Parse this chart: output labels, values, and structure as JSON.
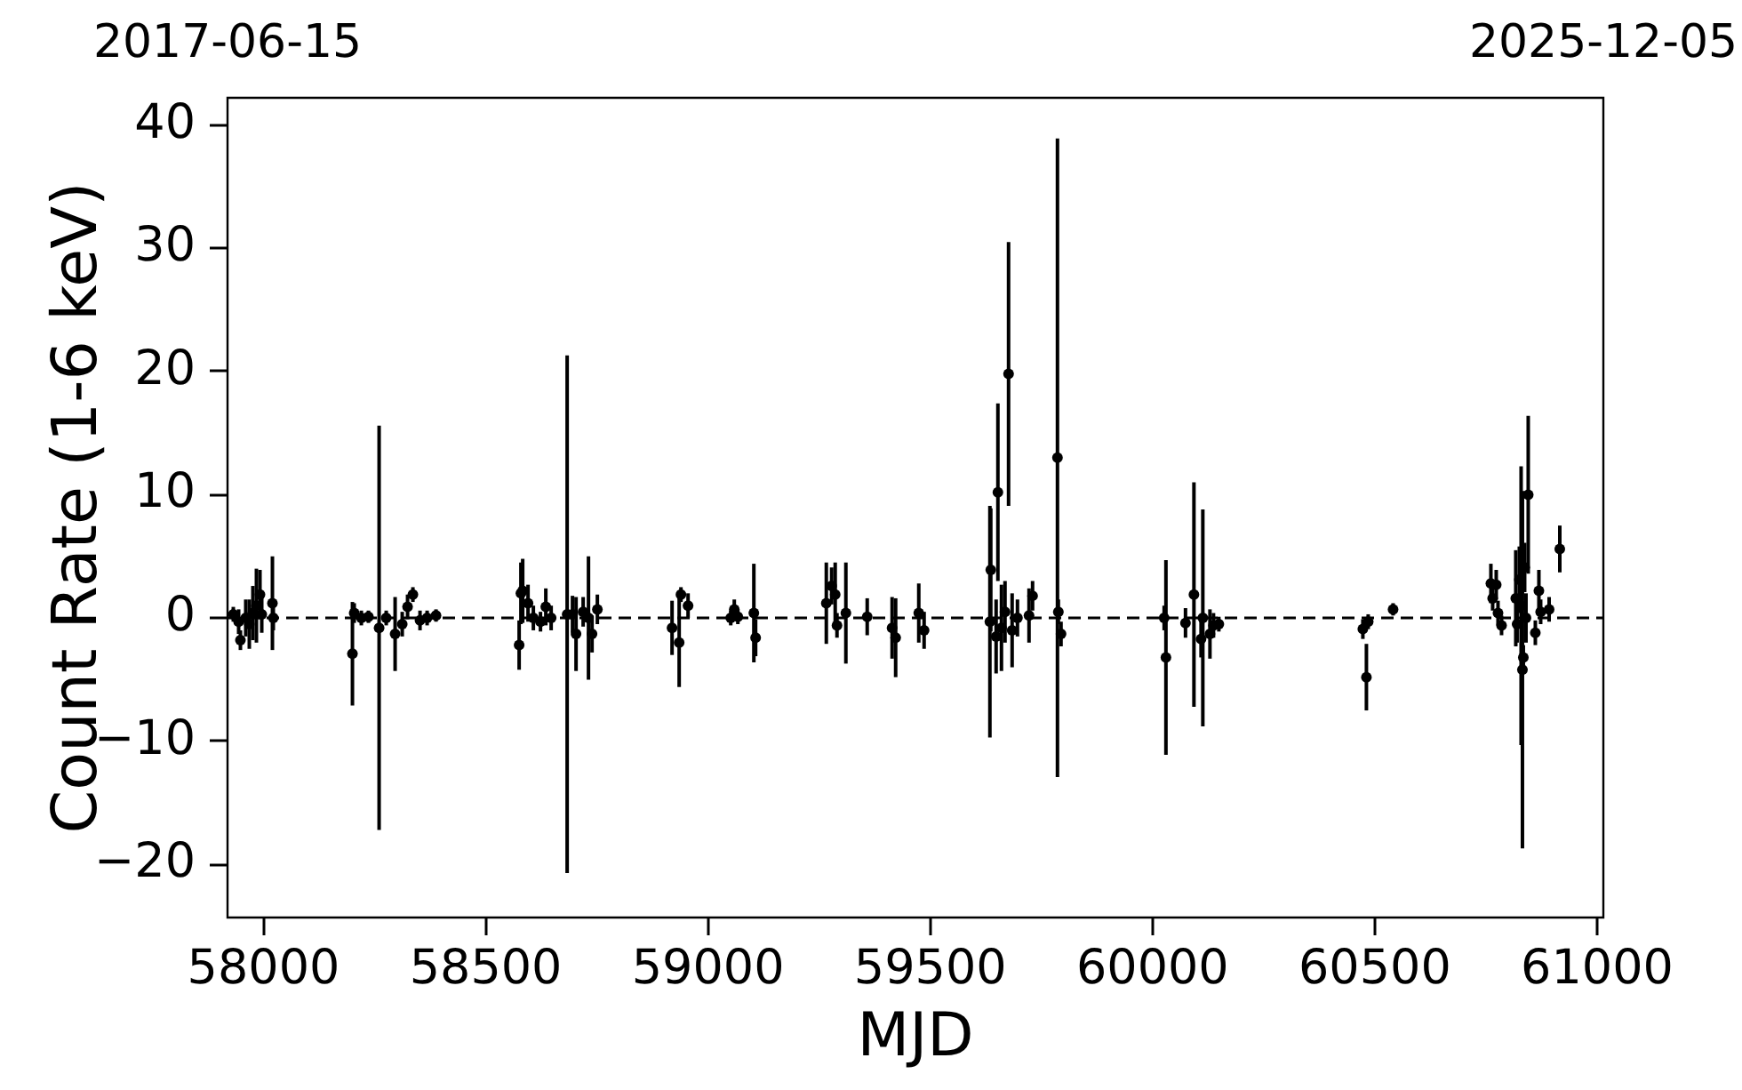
{
  "chart_data": {
    "type": "scatter",
    "xlabel": "MJD",
    "ylabel": "Count Rate (1-6 keV)",
    "xlim": [
      57919,
      61014
    ],
    "xticks": [
      58000,
      58500,
      59000,
      59500,
      60000,
      60500,
      61000
    ],
    "x2lim": [
      "2017-06-15",
      "2025-12-05"
    ],
    "x2ticks": [
      "2017-06-15",
      "2025-12-05"
    ],
    "ylim": [
      -24.3,
      42.2
    ],
    "yticks": [
      {
        "value": -20,
        "label": "−20"
      },
      {
        "value": -10,
        "label": "−10"
      },
      0,
      10,
      20,
      30,
      40
    ],
    "marker": "circle",
    "ref_lines": [
      {
        "axis": "y",
        "value": 0,
        "color": "#000000",
        "line_style": "dashed"
      }
    ],
    "series": [
      {
        "color": "#000000",
        "x": [
          57932,
          57944,
          57948,
          57960,
          57968,
          57976,
          57984,
          57992,
          57996,
          58020,
          58022,
          58200,
          58204,
          58220,
          58236,
          58260,
          58276,
          58296,
          58312,
          58324,
          58336,
          58352,
          58368,
          58388,
          58575,
          58579,
          58583,
          58595,
          58607,
          58623,
          58635,
          58647,
          58683,
          58695,
          58703,
          58719,
          58731,
          58739,
          58751,
          58919,
          58935,
          58939,
          58955,
          59051,
          59059,
          59067,
          59103,
          59107,
          59266,
          59278,
          59286,
          59290,
          59310,
          59358,
          59414,
          59422,
          59474,
          59486,
          59634,
          59636,
          59648,
          59652,
          59660,
          59668,
          59676,
          59684,
          59696,
          59722,
          59730,
          59786,
          59788,
          59794,
          60026,
          60030,
          60074,
          60093,
          60109,
          60113,
          60129,
          60137,
          60149,
          60473,
          60481,
          60485,
          60541,
          60761,
          60765,
          60773,
          60777,
          60785,
          60817,
          60820,
          60825,
          60829,
          60832,
          60834,
          60837,
          60840,
          60845,
          60861,
          60869,
          60873,
          60892,
          60916
        ],
        "values": [
          0.3,
          -0.3,
          -1.8,
          0.0,
          -0.5,
          0.4,
          1.0,
          1.9,
          0.3,
          1.2,
          0.0,
          -2.9,
          0.4,
          0.0,
          0.1,
          -0.8,
          0.0,
          -1.3,
          -0.5,
          0.9,
          1.9,
          -0.2,
          0.0,
          0.2,
          -2.2,
          2.0,
          2.2,
          1.2,
          0.0,
          -0.3,
          0.9,
          0.0,
          0.3,
          0.3,
          -1.3,
          0.5,
          0.0,
          -1.3,
          0.7,
          -0.8,
          -2.0,
          1.9,
          1.0,
          0.0,
          0.7,
          0.1,
          0.4,
          -1.6,
          1.2,
          2.6,
          1.9,
          -0.6,
          0.4,
          0.1,
          -0.8,
          -1.6,
          0.4,
          -1.0,
          -0.3,
          3.9,
          -1.5,
          10.2,
          -0.8,
          0.5,
          19.8,
          -1.0,
          0.0,
          0.2,
          1.8,
          13.0,
          0.5,
          -1.3,
          0.0,
          -3.2,
          -0.4,
          1.9,
          -1.7,
          0.0,
          -1.3,
          -0.6,
          -0.5,
          -0.9,
          -4.8,
          -0.3,
          0.7,
          2.8,
          1.6,
          2.7,
          0.4,
          -0.6,
          1.6,
          -0.5,
          3.1,
          1.0,
          -4.2,
          -3.2,
          4.1,
          0.0,
          10.0,
          -1.2,
          2.2,
          0.5,
          0.7,
          5.6
        ],
        "errors": [
          0.6,
          1.0,
          0.8,
          1.5,
          2.0,
          2.2,
          3.0,
          2.0,
          1.5,
          3.8,
          1.0,
          4.2,
          0.8,
          0.6,
          0.5,
          16.4,
          0.6,
          3.0,
          1.0,
          1.0,
          0.6,
          0.8,
          0.6,
          0.5,
          2.0,
          2.5,
          2.6,
          1.5,
          1.0,
          0.8,
          1.5,
          1.0,
          21.0,
          1.5,
          3.0,
          1.2,
          5.0,
          1.5,
          1.2,
          2.2,
          3.6,
          0.6,
          1.0,
          0.6,
          0.8,
          0.6,
          4.0,
          1.5,
          3.3,
          1.5,
          2.6,
          1.0,
          4.1,
          1.5,
          2.5,
          3.2,
          2.4,
          1.5,
          9.4,
          5.0,
          3.0,
          7.2,
          3.5,
          2.5,
          10.7,
          3.0,
          1.5,
          2.2,
          1.2,
          25.9,
          1.0,
          1.0,
          1.0,
          7.9,
          1.2,
          9.1,
          1.5,
          8.8,
          2.0,
          1.0,
          0.6,
          0.8,
          2.7,
          0.6,
          0.5,
          1.6,
          1.0,
          1.2,
          1.0,
          0.8,
          3.9,
          1.5,
          2.7,
          11.3,
          14.5,
          1.0,
          2.0,
          2.0,
          6.4,
          1.0,
          1.7,
          1.0,
          1.0,
          1.9
        ]
      }
    ]
  }
}
